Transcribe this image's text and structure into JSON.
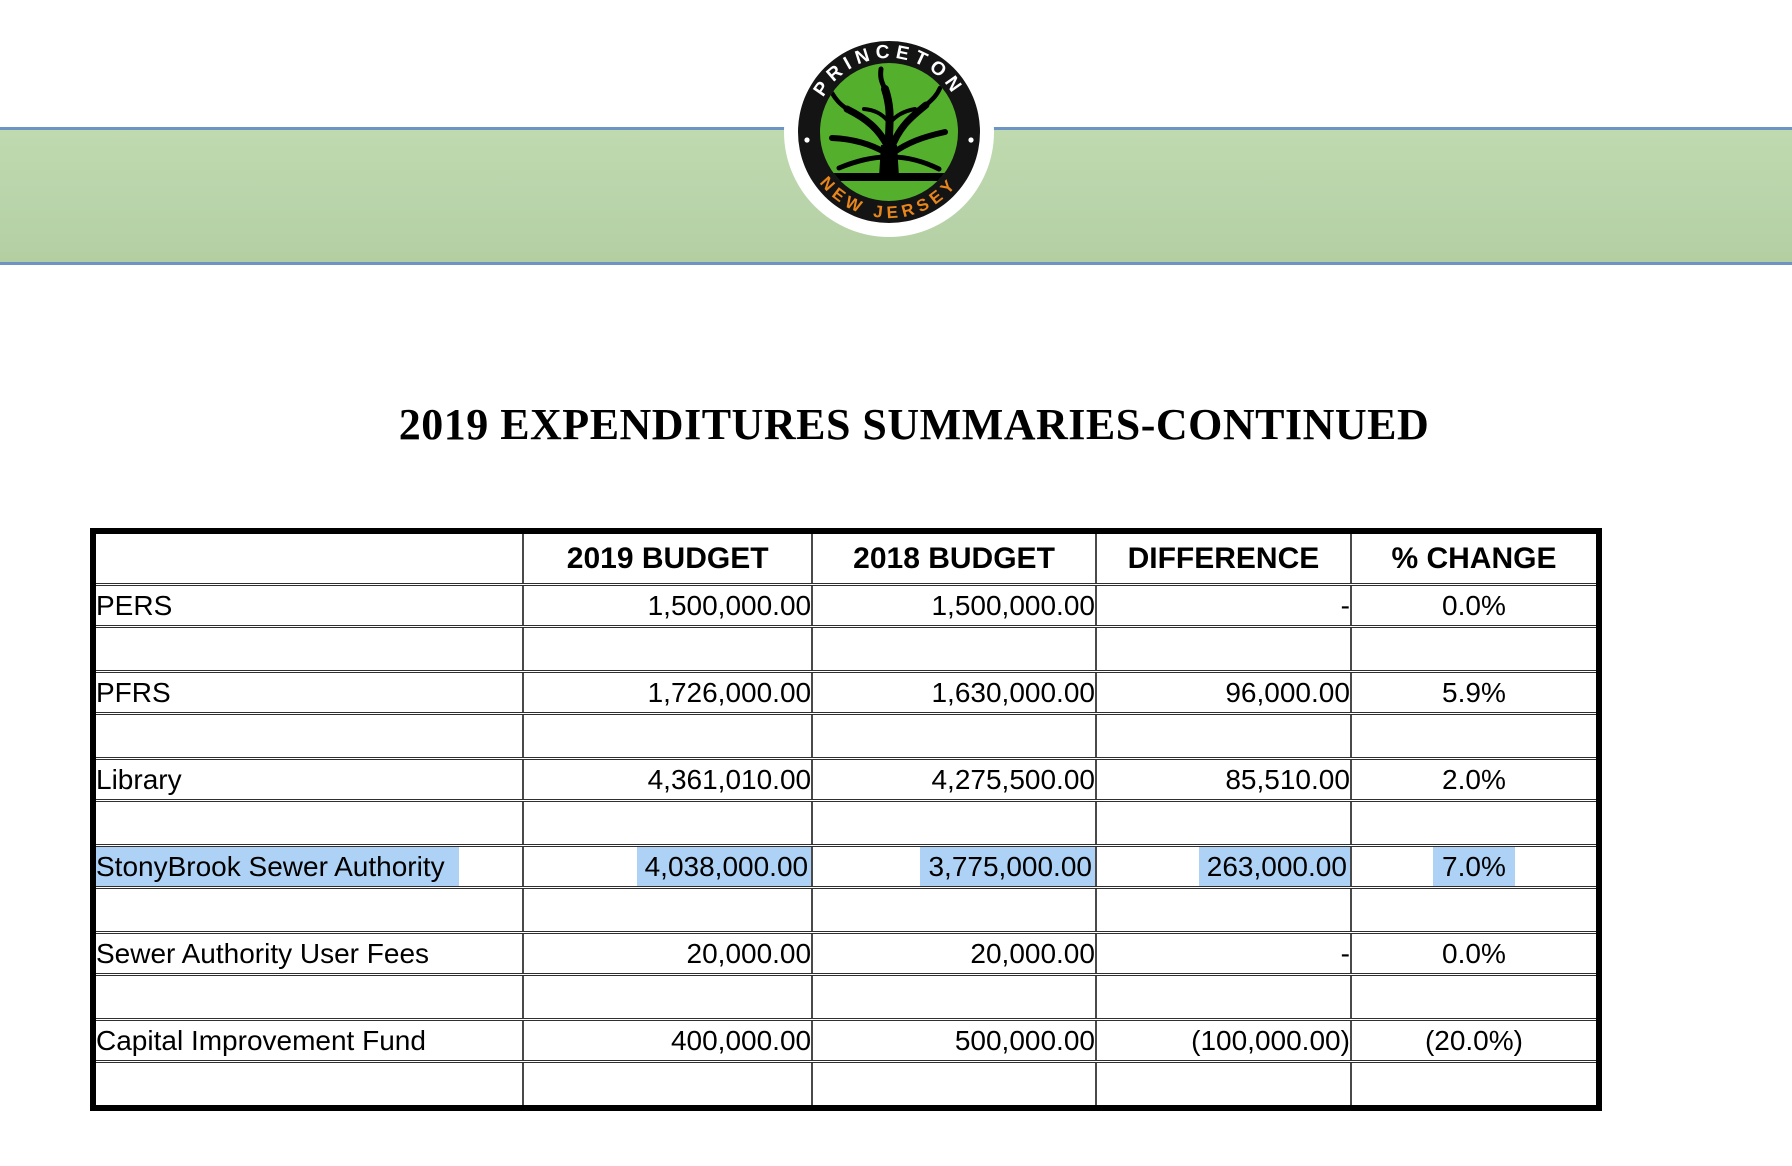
{
  "banner": {
    "green_color": "#b9d4aa",
    "line_color": "#6e93c5"
  },
  "logo": {
    "top_text": "PRINCETON",
    "bottom_text": "NEW JERSEY",
    "separator_dot": "·",
    "ring_color": "#141414",
    "inner_green": "#54b02c",
    "top_text_color": "#ffffff",
    "bottom_text_color": "#e8861c"
  },
  "title": "2019 EXPENDITURES SUMMARIES-CONTINUED",
  "table": {
    "headers": [
      "",
      "2019 BUDGET",
      "2018 BUDGET",
      "DIFFERENCE",
      "% CHANGE"
    ],
    "highlight_color": "#aed2f5",
    "rows": [
      {
        "label": "PERS",
        "b2019": "1,500,000.00",
        "b2018": "1,500,000.00",
        "diff": "-",
        "change": "0.0%",
        "highlight": false
      },
      {
        "label": "PFRS",
        "b2019": "1,726,000.00",
        "b2018": "1,630,000.00",
        "diff": "96,000.00",
        "change": "5.9%",
        "highlight": false
      },
      {
        "label": "Library",
        "b2019": "4,361,010.00",
        "b2018": "4,275,500.00",
        "diff": "85,510.00",
        "change": "2.0%",
        "highlight": false
      },
      {
        "label": "StonyBrook Sewer Authority",
        "b2019": "4,038,000.00",
        "b2018": "3,775,000.00",
        "diff": "263,000.00",
        "change": "7.0%",
        "highlight": true
      },
      {
        "label": "Sewer Authority User Fees",
        "b2019": "20,000.00",
        "b2018": "20,000.00",
        "diff": "-",
        "change": "0.0%",
        "highlight": false
      },
      {
        "label": "Capital Improvement Fund",
        "b2019": "400,000.00",
        "b2018": "500,000.00",
        "diff": "(100,000.00)",
        "change": "(20.0%)",
        "highlight": false
      }
    ]
  }
}
